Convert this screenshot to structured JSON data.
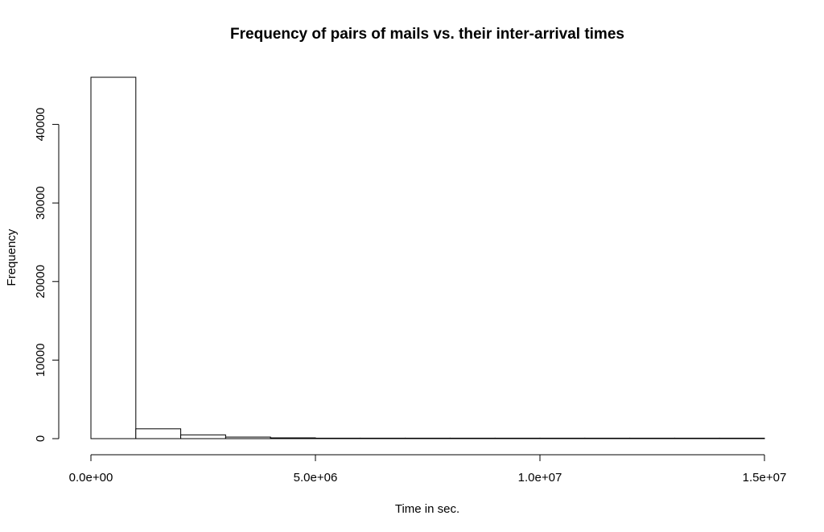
{
  "chart_data": {
    "type": "bar",
    "title": "Frequency of pairs of mails vs. their inter-arrival times",
    "xlabel": "Time in sec.",
    "ylabel": "Frequency",
    "bin_width": 1000000,
    "bins": [
      {
        "start": 0,
        "end": 1000000,
        "count": 46000
      },
      {
        "start": 1000000,
        "end": 2000000,
        "count": 1250
      },
      {
        "start": 2000000,
        "end": 3000000,
        "count": 480
      },
      {
        "start": 3000000,
        "end": 4000000,
        "count": 200
      },
      {
        "start": 4000000,
        "end": 5000000,
        "count": 100
      },
      {
        "start": 5000000,
        "end": 6000000,
        "count": 60
      },
      {
        "start": 6000000,
        "end": 7000000,
        "count": 40
      },
      {
        "start": 7000000,
        "end": 8000000,
        "count": 10
      },
      {
        "start": 8000000,
        "end": 9000000,
        "count": 5
      },
      {
        "start": 9000000,
        "end": 10000000,
        "count": 3
      },
      {
        "start": 10000000,
        "end": 11000000,
        "count": 2
      },
      {
        "start": 11000000,
        "end": 12000000,
        "count": 1
      },
      {
        "start": 12000000,
        "end": 13000000,
        "count": 1
      },
      {
        "start": 13000000,
        "end": 14000000,
        "count": 1
      },
      {
        "start": 14000000,
        "end": 15000000,
        "count": 1
      }
    ],
    "xlim": [
      0,
      15000000
    ],
    "ylim": [
      0,
      46000
    ],
    "x_ticks": [
      {
        "value": 0,
        "label": "0.0e+00"
      },
      {
        "value": 5000000,
        "label": "5.0e+06"
      },
      {
        "value": 10000000,
        "label": "1.0e+07"
      },
      {
        "value": 15000000,
        "label": "1.5e+07"
      }
    ],
    "y_ticks": [
      {
        "value": 0,
        "label": "0"
      },
      {
        "value": 10000,
        "label": "10000"
      },
      {
        "value": 20000,
        "label": "20000"
      },
      {
        "value": 30000,
        "label": "30000"
      },
      {
        "value": 40000,
        "label": "40000"
      }
    ],
    "grid": false,
    "legend": "none"
  }
}
